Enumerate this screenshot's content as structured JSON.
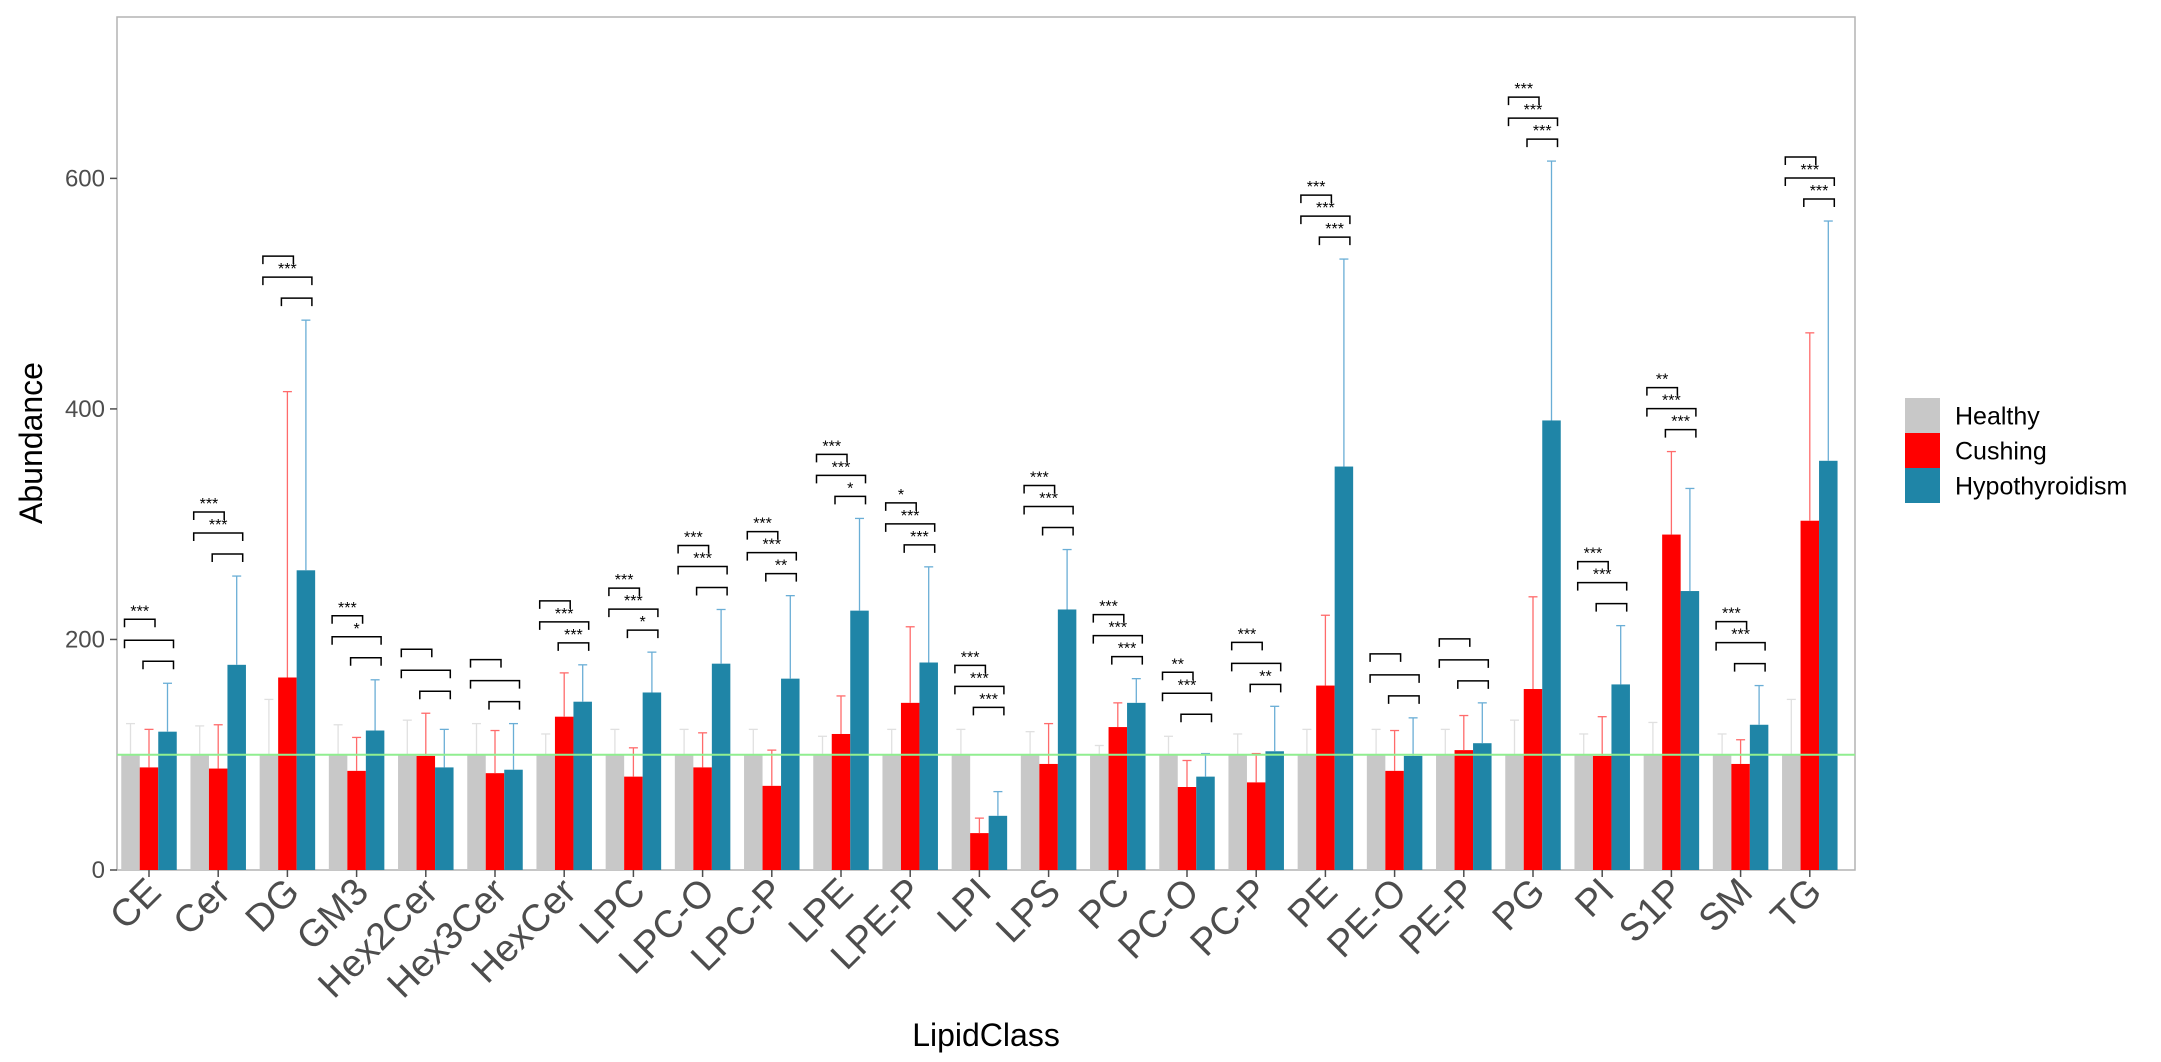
{
  "chart_data": {
    "type": "bar",
    "xlabel": "LipidClass",
    "ylabel": "Abundance",
    "ylim": [
      0,
      740
    ],
    "yticks": [
      0,
      200,
      400,
      600
    ],
    "reference_line": 100,
    "grid": false,
    "legend_position": "right",
    "categories": [
      "CE",
      "Cer",
      "DG",
      "GM3",
      "Hex2Cer",
      "Hex3Cer",
      "HexCer",
      "LPC",
      "LPC-O",
      "LPC-P",
      "LPE",
      "LPE-P",
      "LPI",
      "LPS",
      "PC",
      "PC-O",
      "PC-P",
      "PE",
      "PE-O",
      "PE-P",
      "PG",
      "PI",
      "S1P",
      "SM",
      "TG"
    ],
    "series": [
      {
        "name": "Healthy",
        "color": "#c8c8c8",
        "values": [
          100,
          100,
          100,
          100,
          100,
          100,
          100,
          100,
          100,
          100,
          100,
          100,
          100,
          100,
          100,
          100,
          100,
          100,
          100,
          100,
          100,
          100,
          100,
          100,
          100
        ],
        "error_upper": [
          127,
          125,
          148,
          126,
          130,
          127,
          118,
          122,
          122,
          122,
          116,
          122,
          122,
          120,
          108,
          116,
          118,
          122,
          122,
          122,
          130,
          118,
          128,
          118,
          148
        ]
      },
      {
        "name": "Cushing",
        "color": "#ff0000",
        "values": [
          89,
          88,
          167,
          86,
          99,
          84,
          133,
          81,
          89,
          73,
          118,
          145,
          32,
          92,
          124,
          72,
          76,
          160,
          86,
          104,
          157,
          99,
          291,
          92,
          303
        ],
        "error_upper": [
          122,
          126,
          415,
          115,
          136,
          121,
          171,
          106,
          119,
          104,
          151,
          211,
          45,
          127,
          145,
          95,
          101,
          221,
          121,
          134,
          237,
          133,
          363,
          113,
          466
        ]
      },
      {
        "name": "Hypothyroidism",
        "color": "#1f85a7",
        "values": [
          120,
          178,
          260,
          121,
          89,
          87,
          146,
          154,
          179,
          166,
          225,
          180,
          47,
          226,
          145,
          81,
          103,
          350,
          99,
          110,
          390,
          161,
          242,
          126,
          355
        ],
        "error_upper": [
          162,
          255,
          477,
          165,
          122,
          127,
          178,
          189,
          226,
          238,
          305,
          263,
          68,
          278,
          166,
          101,
          142,
          530,
          132,
          145,
          615,
          212,
          331,
          160,
          563
        ]
      }
    ],
    "significance": [
      [
        [
          "***",
          "",
          ""
        ]
      ],
      [
        [
          "***",
          "***",
          ""
        ]
      ],
      [
        [
          "",
          "***",
          ""
        ]
      ],
      [
        [
          "***",
          "*",
          ""
        ]
      ],
      [
        [
          "",
          "",
          ""
        ]
      ],
      [
        [
          "",
          "",
          ""
        ]
      ],
      [
        [
          "",
          "***",
          "***"
        ]
      ],
      [
        [
          "***",
          "***",
          "*"
        ]
      ],
      [
        [
          "***",
          "***",
          ""
        ]
      ],
      [
        [
          "***",
          "***",
          "**"
        ]
      ],
      [
        [
          "***",
          "***",
          "*"
        ]
      ],
      [
        [
          "*",
          "***",
          "***"
        ]
      ],
      [
        [
          "***",
          "***",
          "***"
        ]
      ],
      [
        [
          "***",
          "***",
          ""
        ]
      ],
      [
        [
          "***",
          "***",
          "***"
        ]
      ],
      [
        [
          "**",
          "***",
          ""
        ]
      ],
      [
        [
          "***",
          "",
          "**"
        ]
      ],
      [
        [
          "***",
          "***",
          "***"
        ]
      ],
      [
        [
          "",
          "",
          ""
        ]
      ],
      [
        [
          "",
          "",
          ""
        ]
      ],
      [
        [
          "***",
          "***",
          "***"
        ]
      ],
      [
        [
          "***",
          "***",
          ""
        ]
      ],
      [
        [
          "**",
          "***",
          "***"
        ]
      ],
      [
        [
          "***",
          "***",
          ""
        ]
      ],
      [
        [
          "",
          "***",
          "***"
        ]
      ]
    ]
  }
}
